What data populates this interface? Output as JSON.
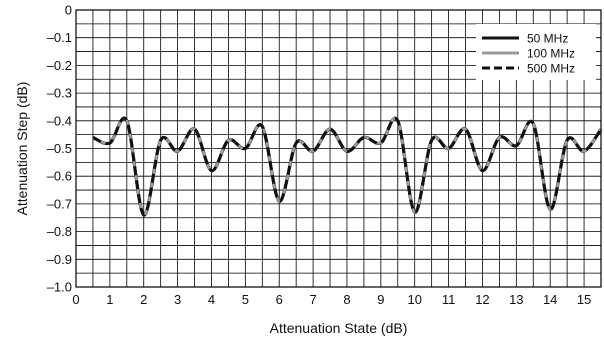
{
  "chart_data": {
    "type": "line",
    "xlabel": "Attenuation State (dB)",
    "ylabel": "Attenuation Step (dB)",
    "xlim": [
      0,
      15.5
    ],
    "ylim": [
      -1.0,
      0
    ],
    "x_ticks": [
      0,
      1,
      2,
      3,
      4,
      5,
      6,
      7,
      8,
      9,
      10,
      11,
      12,
      13,
      14,
      15
    ],
    "x_tick_labels": [
      "0",
      "1",
      "2",
      "3",
      "4",
      "5",
      "6",
      "7",
      "8",
      "9",
      "10",
      "11",
      "12",
      "13",
      "14",
      "15"
    ],
    "y_ticks": [
      0,
      -0.1,
      -0.2,
      -0.3,
      -0.4,
      -0.5,
      -0.6,
      -0.7,
      -0.8,
      -0.9,
      -1.0
    ],
    "y_tick_labels": [
      "0",
      "–0.1",
      "–0.2",
      "–0.3",
      "–0.4",
      "–0.5",
      "–0.6",
      "–0.7",
      "–0.8",
      "–0.9",
      "–1.0"
    ],
    "grid": true,
    "legend_position": "top-right",
    "x": [
      0.5,
      1.0,
      1.5,
      2.0,
      2.5,
      3.0,
      3.5,
      4.0,
      4.5,
      5.0,
      5.5,
      6.0,
      6.5,
      7.0,
      7.5,
      8.0,
      8.5,
      9.0,
      9.5,
      10.0,
      10.5,
      11.0,
      11.5,
      12.0,
      12.5,
      13.0,
      13.5,
      14.0,
      14.5,
      15.0,
      15.5
    ],
    "series": [
      {
        "name": "50 MHz",
        "color": "#111111",
        "dash": "solid",
        "values": [
          -0.46,
          -0.48,
          -0.4,
          -0.74,
          -0.47,
          -0.51,
          -0.43,
          -0.58,
          -0.47,
          -0.5,
          -0.42,
          -0.69,
          -0.48,
          -0.51,
          -0.43,
          -0.51,
          -0.46,
          -0.48,
          -0.4,
          -0.73,
          -0.47,
          -0.5,
          -0.43,
          -0.58,
          -0.46,
          -0.49,
          -0.41,
          -0.72,
          -0.47,
          -0.51,
          -0.43
        ]
      },
      {
        "name": "100 MHz",
        "color": "#9a9a9a",
        "dash": "solid",
        "values": [
          -0.46,
          -0.48,
          -0.4,
          -0.74,
          -0.47,
          -0.51,
          -0.43,
          -0.58,
          -0.47,
          -0.5,
          -0.42,
          -0.69,
          -0.48,
          -0.51,
          -0.43,
          -0.51,
          -0.46,
          -0.48,
          -0.4,
          -0.73,
          -0.47,
          -0.5,
          -0.43,
          -0.58,
          -0.46,
          -0.49,
          -0.41,
          -0.72,
          -0.47,
          -0.51,
          -0.43
        ]
      },
      {
        "name": "500 MHz",
        "color": "#111111",
        "dash": "dashed",
        "values": [
          -0.46,
          -0.48,
          -0.4,
          -0.74,
          -0.47,
          -0.51,
          -0.43,
          -0.58,
          -0.47,
          -0.5,
          -0.42,
          -0.69,
          -0.48,
          -0.51,
          -0.43,
          -0.51,
          -0.46,
          -0.48,
          -0.4,
          -0.73,
          -0.47,
          -0.5,
          -0.43,
          -0.58,
          -0.46,
          -0.49,
          -0.41,
          -0.72,
          -0.47,
          -0.51,
          -0.43
        ]
      }
    ]
  }
}
